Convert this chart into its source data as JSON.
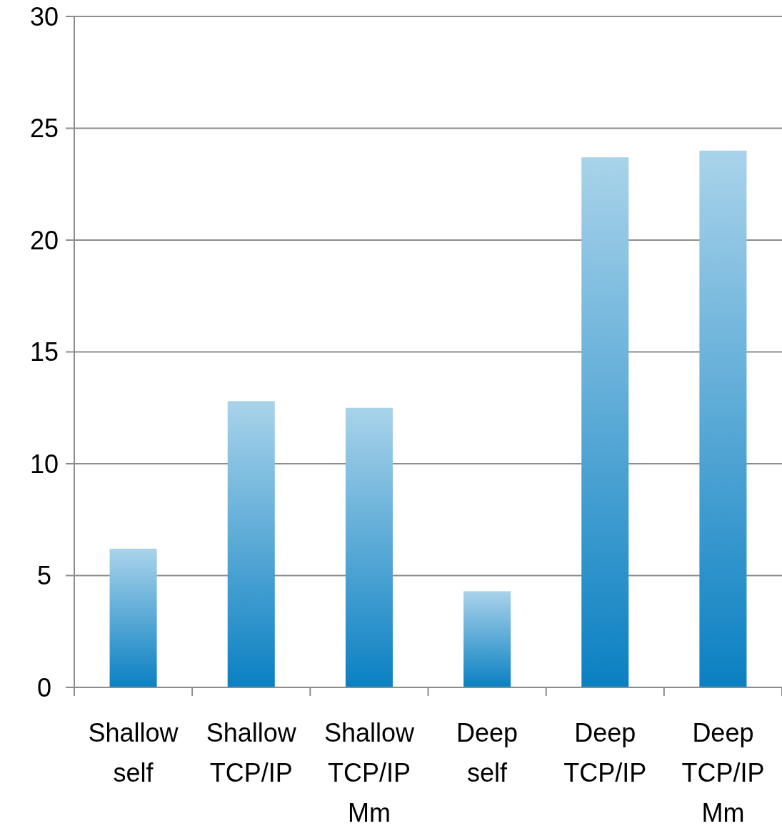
{
  "chart_data": {
    "type": "bar",
    "categories": [
      "Shallow self",
      "Shallow TCP/IP",
      "Shallow TCP/IP Mm",
      "Deep self",
      "Deep TCP/IP",
      "Deep TCP/IP Mm"
    ],
    "values": [
      6.2,
      12.8,
      12.5,
      4.3,
      23.7,
      24.0
    ],
    "color": "#0a80c2",
    "ylim": [
      0,
      30
    ],
    "yticks": [
      0,
      5,
      10,
      15,
      20,
      25,
      30
    ],
    "grid": "y"
  }
}
